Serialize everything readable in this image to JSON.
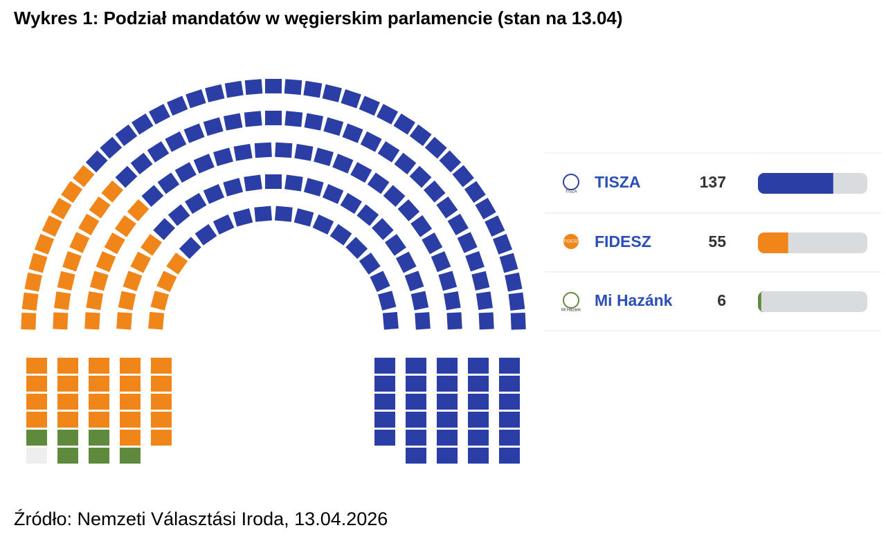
{
  "chart_data": {
    "type": "parliament",
    "title": "Wykres 1: Podział mandatów w węgierskim parlamencie (stan na 13.04)",
    "categories": [
      "TISZA",
      "FIDESZ",
      "Mi Hazánk"
    ],
    "values": [
      137,
      55,
      6
    ],
    "colors": [
      "#2b3ea6",
      "#f08519",
      "#5f8a3c"
    ],
    "xlim": [
      0,
      199
    ],
    "source": "Źródło: Nemzeti Választási Iroda, 13.04.2026"
  }
}
